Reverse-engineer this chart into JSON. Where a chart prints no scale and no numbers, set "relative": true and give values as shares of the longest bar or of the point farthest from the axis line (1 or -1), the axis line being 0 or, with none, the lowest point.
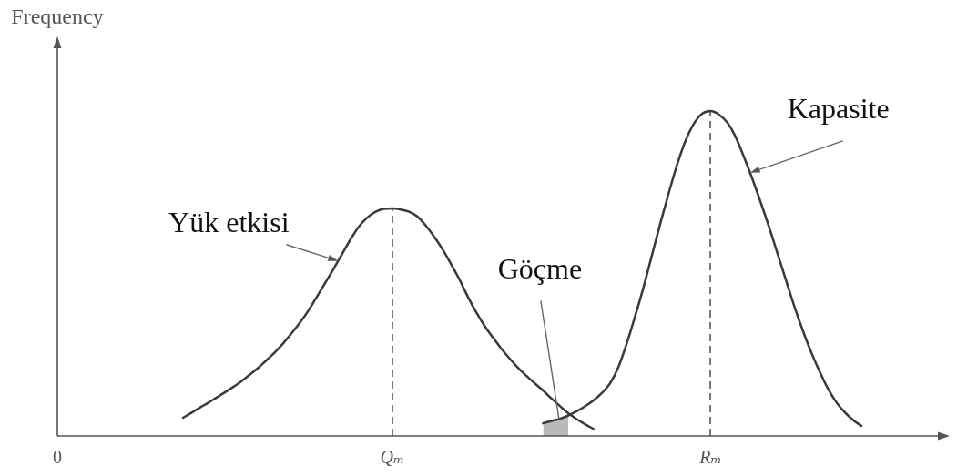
{
  "chart_data": {
    "type": "line",
    "ylabel": "Frequency",
    "relative": true,
    "categories": [
      "0",
      null,
      null,
      null,
      null,
      null,
      null,
      null,
      null,
      null,
      null,
      null,
      null,
      null,
      null,
      null,
      null,
      null,
      null,
      null,
      null,
      null,
      null,
      null,
      null,
      null,
      null,
      null,
      null,
      null,
      null,
      null,
      null,
      null,
      null,
      null,
      null,
      null,
      null,
      null,
      "Qₘ",
      null,
      null,
      null,
      null,
      null,
      null,
      null,
      null,
      null,
      null,
      null,
      null,
      null,
      null,
      null,
      null,
      null,
      null,
      null,
      null,
      null,
      null,
      null,
      null,
      null,
      null,
      null,
      null,
      null,
      null,
      null,
      null,
      null,
      null,
      null,
      null,
      null,
      "Rₘ",
      null,
      null,
      null,
      null,
      null,
      null,
      null,
      null,
      null,
      null,
      null,
      null,
      null,
      null,
      null,
      null,
      null,
      null,
      null,
      null,
      null,
      null,
      null,
      null,
      null,
      null,
      null,
      null
    ],
    "series": [
      {
        "name": "Yük etkisi",
        "type": "line",
        "color": "#3a3a3a",
        "values": [
          null,
          null,
          null,
          null,
          null,
          null,
          null,
          null,
          null,
          null,
          null,
          null,
          null,
          null,
          null,
          0.056,
          0.071,
          0.087,
          0.102,
          0.118,
          0.134,
          0.151,
          0.169,
          0.189,
          0.21,
          0.234,
          0.258,
          0.286,
          0.317,
          0.35,
          0.387,
          0.429,
          0.472,
          0.515,
          0.56,
          0.605,
          0.644,
          0.672,
          0.69,
          0.699,
          0.7,
          0.697,
          0.69,
          0.675,
          0.647,
          0.613,
          0.574,
          0.529,
          0.482,
          0.429,
          0.381,
          0.339,
          0.303,
          0.269,
          0.238,
          0.21,
          0.185,
          0.162,
          0.14,
          0.115,
          0.092,
          0.07,
          0.052,
          0.036,
          0.022,
          null,
          null,
          null,
          null,
          null,
          null,
          null,
          null,
          null,
          null,
          null,
          null,
          null,
          null,
          null,
          null,
          null,
          null,
          null,
          null,
          null,
          null,
          null,
          null,
          null,
          null,
          null,
          null,
          null,
          null,
          null,
          null,
          null,
          null,
          null,
          null,
          null,
          null,
          null,
          null,
          null,
          null
        ]
      },
      {
        "name": "Kapasite",
        "type": "line",
        "color": "#3a3a3a",
        "values": [
          null,
          null,
          null,
          null,
          null,
          null,
          null,
          null,
          null,
          null,
          null,
          null,
          null,
          null,
          null,
          null,
          null,
          null,
          null,
          null,
          null,
          null,
          null,
          null,
          null,
          null,
          null,
          null,
          null,
          null,
          null,
          null,
          null,
          null,
          null,
          null,
          null,
          null,
          null,
          null,
          null,
          null,
          null,
          null,
          null,
          null,
          null,
          null,
          null,
          null,
          null,
          null,
          null,
          null,
          null,
          null,
          null,
          null,
          0.039,
          0.046,
          0.053,
          0.063,
          0.076,
          0.091,
          0.109,
          0.132,
          0.162,
          0.213,
          0.286,
          0.37,
          0.459,
          0.557,
          0.655,
          0.748,
          0.835,
          0.908,
          0.961,
          0.992,
          1,
          0.989,
          0.964,
          0.919,
          0.857,
          0.79,
          0.717,
          0.641,
          0.56,
          0.479,
          0.398,
          0.325,
          0.258,
          0.199,
          0.146,
          0.104,
          0.073,
          0.049,
          0.031,
          null,
          null,
          null,
          null,
          null,
          null,
          null,
          null,
          null,
          null
        ]
      },
      {
        "name": "Göçme",
        "type": "area",
        "color": "#3a3a3a",
        "values": [
          null,
          null,
          null,
          null,
          null,
          null,
          null,
          null,
          null,
          null,
          null,
          null,
          null,
          null,
          null,
          null,
          null,
          null,
          null,
          null,
          null,
          null,
          null,
          null,
          null,
          null,
          null,
          null,
          null,
          null,
          null,
          null,
          null,
          null,
          null,
          null,
          null,
          null,
          null,
          null,
          null,
          null,
          null,
          null,
          null,
          null,
          null,
          null,
          null,
          null,
          null,
          null,
          null,
          null,
          null,
          null,
          null,
          null,
          0.039,
          0.046,
          0.053,
          0.063,
          null,
          null,
          null,
          null,
          null,
          null,
          null,
          null,
          null,
          null,
          null,
          null,
          null,
          null,
          null,
          null,
          null,
          null,
          null,
          null,
          null,
          null,
          null,
          null,
          null,
          null,
          null,
          null,
          null,
          null,
          null,
          null,
          null,
          null,
          null,
          null,
          null,
          null,
          null,
          null,
          null,
          null,
          null,
          null,
          null
        ]
      }
    ],
    "ref_lines": [
      {
        "axis": "x",
        "value": "Qₘ",
        "color": "#4d4d4d",
        "line_style": "dashed"
      },
      {
        "axis": "x",
        "value": "Rₘ",
        "color": "#4d4d4d",
        "line_style": "dashed"
      }
    ]
  }
}
